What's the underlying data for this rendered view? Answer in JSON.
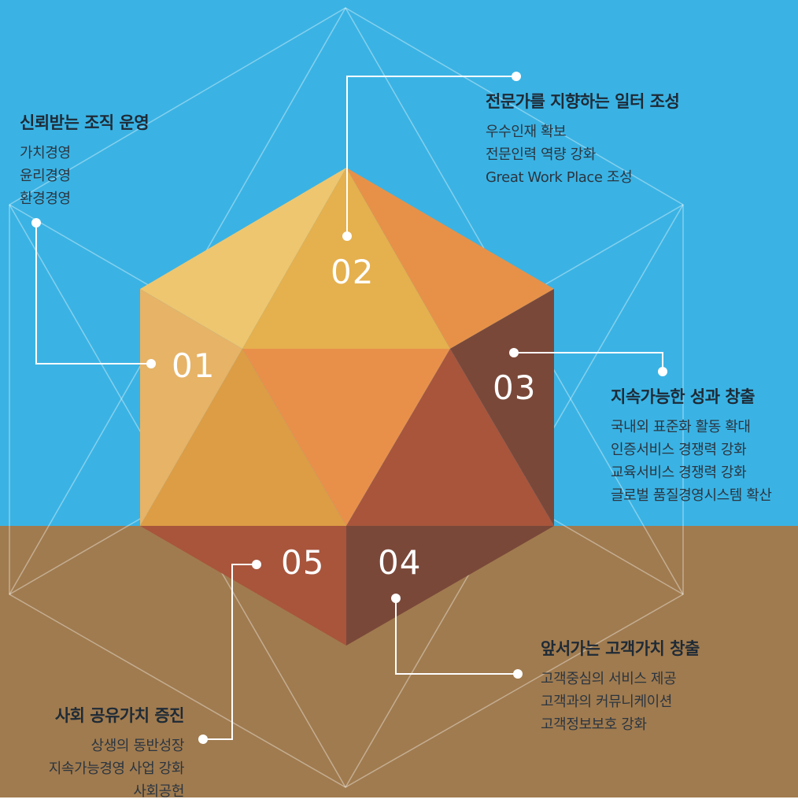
{
  "colors": {
    "sky": "#3ab3e4",
    "ground": "#a07b4f",
    "line": "#ffffff",
    "facet_light_yellow": "#eec670",
    "facet_yellow": "#e5b04e",
    "facet_left_yellow": "#e6b367",
    "facet_orange": "#e79148",
    "facet_center": "#e8904a",
    "facet_orange_left": "#dd9d45",
    "facet_rust": "#a8553c",
    "facet_brown": "#7a4839"
  },
  "numbers": [
    "01",
    "02",
    "03",
    "04",
    "05"
  ],
  "sections": [
    {
      "title": "신뢰받는 조직 운영",
      "items": [
        "가치경영",
        "윤리경영",
        "환경경영"
      ]
    },
    {
      "title": "전문가를 지향하는 일터 조성",
      "items": [
        "우수인재 확보",
        "전문인력 역량 강화",
        "Great Work Place 조성"
      ]
    },
    {
      "title": "지속가능한 성과 창출",
      "items": [
        "국내외 표준화 활동 확대",
        "인증서비스 경쟁력 강화",
        "교육서비스 경쟁력 강화",
        "글로벌 품질경영시스템 확산"
      ]
    },
    {
      "title": "앞서가는 고객가치 창출",
      "items": [
        "고객중심의 서비스 제공",
        "고객과의 커뮤니케이션",
        "고객정보보호 강화"
      ]
    },
    {
      "title": "사회 공유가치 증진",
      "items": [
        "상생의 동반성장",
        "지속가능경영 사업 강화",
        "사회공헌"
      ]
    }
  ]
}
